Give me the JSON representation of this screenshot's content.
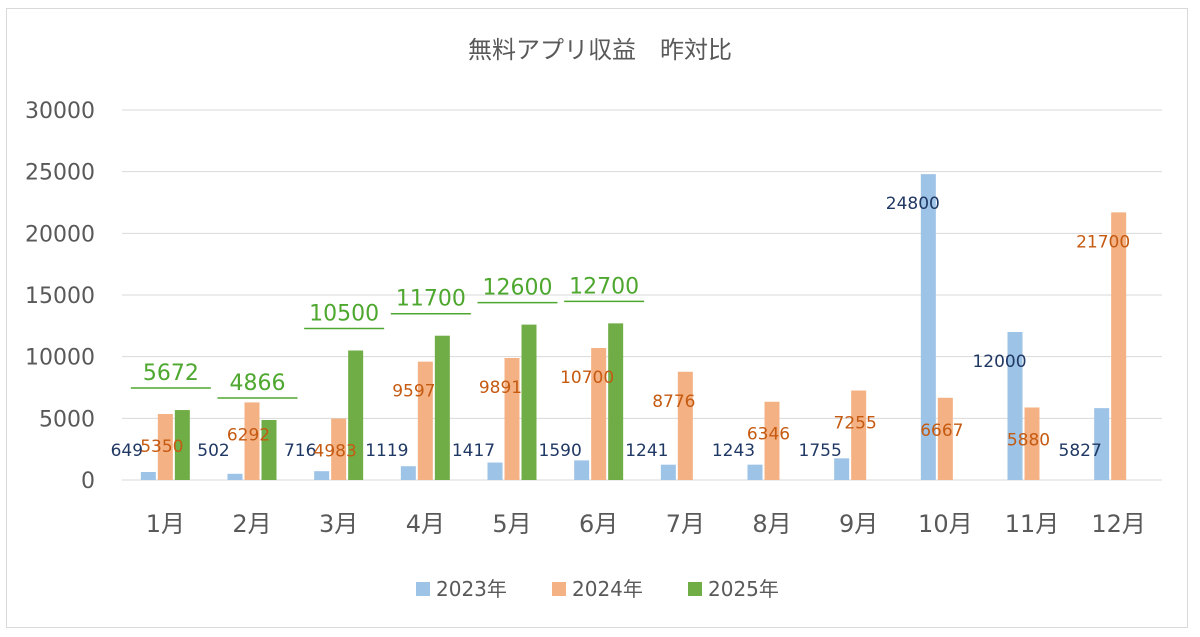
{
  "chart_data": {
    "type": "bar",
    "title": "無料アプリ収益　昨対比",
    "categories": [
      "1月",
      "2月",
      "3月",
      "4月",
      "5月",
      "6月",
      "7月",
      "8月",
      "9月",
      "10月",
      "11月",
      "12月"
    ],
    "ylim": [
      0,
      30000
    ],
    "yticks": [
      "0",
      "5000",
      "10000",
      "15000",
      "20000",
      "25000",
      "30000"
    ],
    "grid": true,
    "legend_position": "bottom",
    "series": [
      {
        "name": "2023年",
        "color": "#9dc3e6",
        "label_color": "#203864",
        "values": [
          649,
          502,
          716,
          1119,
          1417,
          1590,
          1241,
          1243,
          1755,
          24800,
          12000,
          5827
        ]
      },
      {
        "name": "2024年",
        "color": "#f4b183",
        "label_color": "#c55a11",
        "values": [
          5350,
          6292,
          4983,
          9597,
          9891,
          10700,
          8776,
          6346,
          7255,
          6667,
          5880,
          21700
        ]
      },
      {
        "name": "2025年",
        "color": "#70ad47",
        "label_color": "#4ea72e",
        "values": [
          5672,
          4866,
          10500,
          11700,
          12600,
          12700,
          null,
          null,
          null,
          null,
          null,
          null
        ]
      }
    ]
  }
}
